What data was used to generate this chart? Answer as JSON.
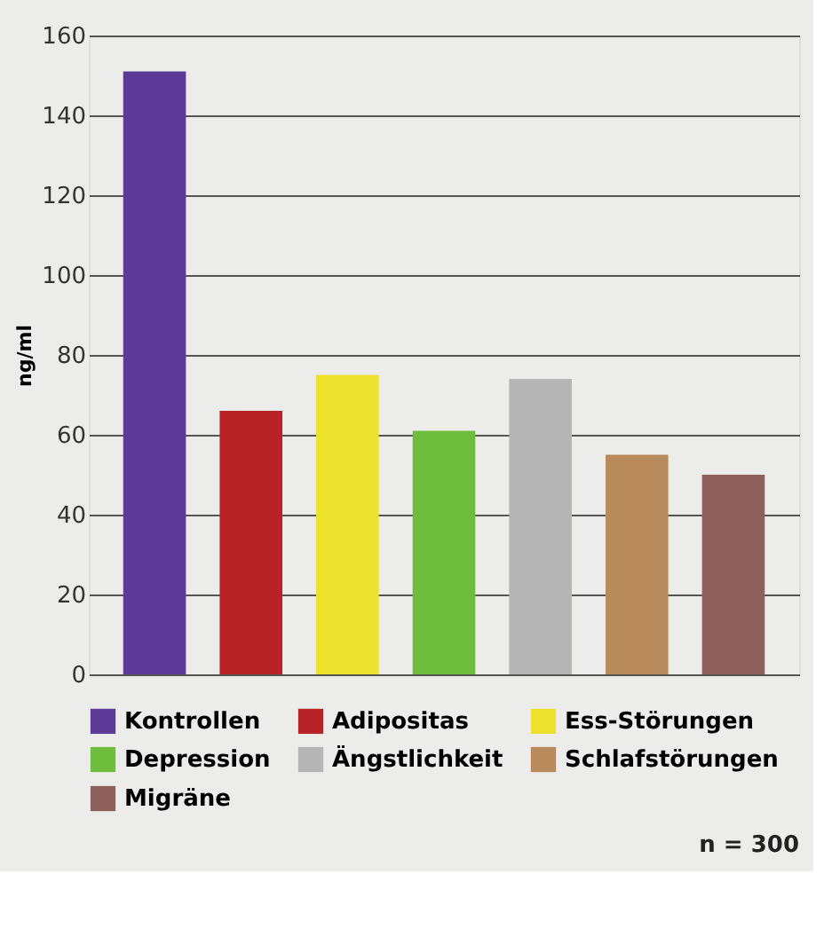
{
  "chart_data": {
    "type": "bar",
    "categories": [
      null
    ],
    "series": [
      {
        "name": "Kontrollen",
        "color": "#5b3a98",
        "values": [
          151
        ]
      },
      {
        "name": "Adipositas",
        "color": "#b82328",
        "values": [
          66
        ]
      },
      {
        "name": "Ess-Störungen",
        "color": "#ece22e",
        "values": [
          75
        ]
      },
      {
        "name": "Depression",
        "color": "#6fbd3d",
        "values": [
          61
        ]
      },
      {
        "name": "Ängstlichkeit",
        "color": "#b5b5b5",
        "values": [
          74
        ]
      },
      {
        "name": "Schlafstörungen",
        "color": "#b98a5c",
        "values": [
          55
        ]
      },
      {
        "name": "Migräne",
        "color": "#8e615c",
        "values": [
          50
        ]
      }
    ],
    "ylabel": "ng/ml",
    "ylim": [
      0,
      160
    ],
    "yticks": [
      0,
      20,
      40,
      60,
      80,
      100,
      120,
      140,
      160
    ],
    "grid": "y",
    "legend": "bottom",
    "tick_labels": "y",
    "annotations": [
      "n = 300"
    ]
  }
}
